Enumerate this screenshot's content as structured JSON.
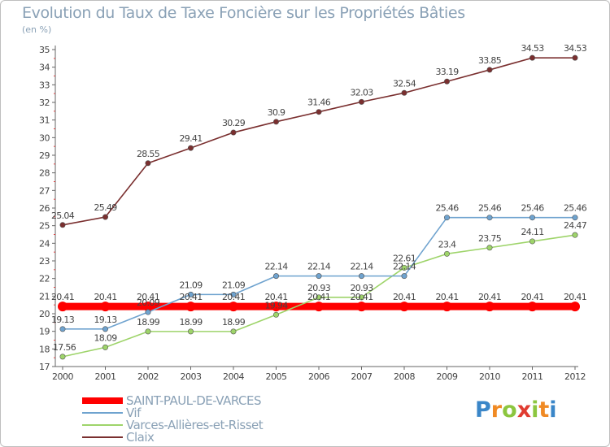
{
  "chart_data": {
    "type": "line",
    "title": "Evolution du Taux de Taxe Foncière sur les Propriétés Bâties",
    "unit_label": "(en %)",
    "x": [
      "2000",
      "2001",
      "2002",
      "2003",
      "2004",
      "2005",
      "2006",
      "2007",
      "2008",
      "2009",
      "2010",
      "2011",
      "2012"
    ],
    "ylim": [
      17,
      35
    ],
    "yticks": [
      "17",
      "18",
      "19",
      "20",
      "21",
      "22",
      "23",
      "24",
      "25",
      "26",
      "27",
      "28",
      "29",
      "30",
      "31",
      "32",
      "33",
      "34",
      "35"
    ],
    "grid": false,
    "legend_position": "bottom-left",
    "series": [
      {
        "name": "SAINT-PAUL-DE-VARCES",
        "color": "#ff0000",
        "values": [
          20.41,
          20.41,
          20.41,
          20.41,
          20.41,
          20.41,
          20.41,
          20.41,
          20.41,
          20.41,
          20.41,
          20.41,
          20.41
        ],
        "labels": [
          "20.41",
          "20.41",
          "20.41",
          "20.41",
          "20.41",
          "20.41",
          "20.41",
          "20.41",
          "20.41",
          "20.41",
          "20.41",
          "20.41",
          "20.41"
        ]
      },
      {
        "name": "Vif",
        "color": "#6fa3cf",
        "values": [
          19.13,
          19.13,
          20.09,
          21.09,
          21.09,
          22.14,
          22.14,
          22.14,
          22.14,
          25.46,
          25.46,
          25.46,
          25.46
        ],
        "labels": [
          "19.13",
          "19.13",
          "20.09",
          "21.09",
          "21.09",
          "22.14",
          "22.14",
          "22.14",
          "22.14",
          "25.46",
          "25.46",
          "25.46",
          "25.46"
        ]
      },
      {
        "name": "Varces-Allières-et-Risset",
        "color": "#9ed46a",
        "values": [
          17.56,
          18.09,
          18.99,
          18.99,
          18.99,
          19.94,
          20.93,
          20.93,
          22.61,
          23.4,
          23.75,
          24.11,
          24.47
        ],
        "labels": [
          "17.56",
          "18.09",
          "18.99",
          "18.99",
          "18.99",
          "19.94",
          "20.93",
          "20.93",
          "22.61",
          "23.4",
          "23.75",
          "24.11",
          "24.47"
        ]
      },
      {
        "name": "Claix",
        "color": "#7a2f2f",
        "values": [
          25.04,
          25.49,
          28.55,
          29.41,
          30.29,
          30.9,
          31.46,
          32.03,
          32.54,
          33.19,
          33.85,
          34.53,
          34.53
        ],
        "labels": [
          "25.04",
          "25.49",
          "28.55",
          "29.41",
          "30.29",
          "30.9",
          "31.46",
          "32.03",
          "32.54",
          "33.19",
          "33.85",
          "34.53",
          "34.53"
        ]
      }
    ]
  },
  "brand": {
    "letters": [
      "P",
      "r",
      "o",
      "x",
      "i",
      "t",
      "i"
    ],
    "colors": [
      "#3a86c8",
      "#f08a24",
      "#8cc63f",
      "#e03c31",
      "#8cc63f",
      "#f08a24",
      "#3a86c8"
    ]
  }
}
